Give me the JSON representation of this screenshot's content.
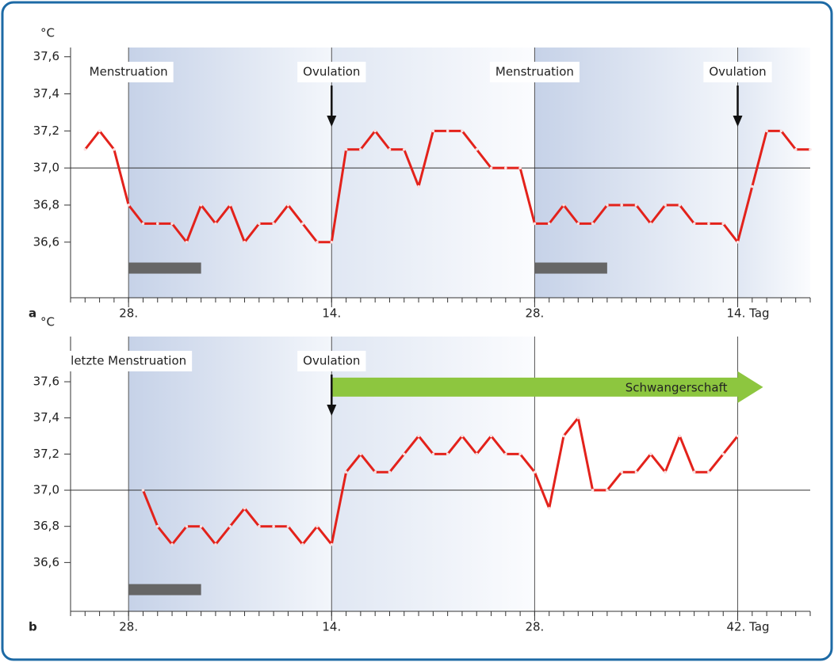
{
  "chart_data": [
    {
      "type": "line",
      "panel": "a",
      "ylabel": "°C",
      "x": [
        1,
        2,
        3,
        4,
        5,
        6,
        7,
        8,
        9,
        10,
        11,
        12,
        13,
        14,
        15,
        16,
        17,
        18,
        19,
        20,
        21,
        22,
        23,
        24,
        25,
        26,
        27,
        28,
        29,
        30,
        31,
        32,
        33,
        34,
        35,
        36,
        37,
        38,
        39,
        40,
        41,
        42,
        43,
        44,
        45,
        46,
        47,
        48,
        49,
        50,
        51
      ],
      "values": [
        37.1,
        37.2,
        37.1,
        36.8,
        36.7,
        36.7,
        36.7,
        36.6,
        36.8,
        36.7,
        36.8,
        36.6,
        36.7,
        36.7,
        36.8,
        36.7,
        36.6,
        36.6,
        37.1,
        37.1,
        37.2,
        37.1,
        37.1,
        36.9,
        37.2,
        37.2,
        37.2,
        37.1,
        37.0,
        37.0,
        37.0,
        36.7,
        36.7,
        36.8,
        36.7,
        36.7,
        36.8,
        36.8,
        36.8,
        36.7,
        36.8,
        36.8,
        36.7,
        36.7,
        36.7,
        36.6,
        36.9,
        37.2,
        37.2,
        37.1,
        37.1
      ],
      "color": "#e3221b",
      "xlim": [
        0,
        51
      ],
      "xticks": [
        {
          "value": 4,
          "label": "28."
        },
        {
          "value": 18,
          "label": "14."
        },
        {
          "value": 32,
          "label": "28."
        },
        {
          "value": 46,
          "label": "14. Tag"
        }
      ],
      "minor_ticks_x": 1,
      "ylim": [
        36.3,
        37.65
      ],
      "yticks": [
        {
          "value": 36.6,
          "label": "36,6"
        },
        {
          "value": 36.8,
          "label": "36,8"
        },
        {
          "value": 37,
          "label": "37,0"
        },
        {
          "value": 37.2,
          "label": "37,2"
        },
        {
          "value": 37.4,
          "label": "37,4"
        },
        {
          "value": 37.6,
          "label": "37,6"
        }
      ],
      "hline": 37,
      "grid_x": true,
      "labels": [
        {
          "label": "Menstruation",
          "x": 4
        },
        {
          "label": "Menstruation",
          "x": 32
        }
      ],
      "arrows": [
        {
          "label": "Ovulation",
          "x": 18
        },
        {
          "label": "Ovulation",
          "x": 46
        }
      ],
      "bars": [
        {
          "x": [
            4,
            9
          ],
          "y": 36.46
        },
        {
          "x": [
            32,
            37
          ],
          "y": 36.46
        }
      ]
    },
    {
      "type": "line",
      "panel": "b",
      "ylabel": "°C",
      "x": [
        5,
        6,
        7,
        8,
        9,
        10,
        11,
        12,
        13,
        14,
        15,
        16,
        17,
        18,
        19,
        20,
        21,
        22,
        23,
        24,
        25,
        26,
        27,
        28,
        29,
        30,
        31,
        32,
        33,
        34,
        35,
        36,
        37,
        38,
        39,
        40,
        41,
        42,
        43,
        44,
        45,
        46
      ],
      "values": [
        37.0,
        36.8,
        36.7,
        36.8,
        36.8,
        36.7,
        36.8,
        36.9,
        36.8,
        36.8,
        36.8,
        36.7,
        36.8,
        36.7,
        37.1,
        37.2,
        37.1,
        37.1,
        37.2,
        37.3,
        37.2,
        37.2,
        37.3,
        37.2,
        37.3,
        37.2,
        37.2,
        37.1,
        36.9,
        37.3,
        37.4,
        37.0,
        37.0,
        37.1,
        37.1,
        37.2,
        37.1,
        37.3,
        37.1,
        37.1,
        37.2,
        37.3
      ],
      "color": "#e3221b",
      "xlim": [
        0,
        51
      ],
      "xticks": [
        {
          "value": 4,
          "label": "28."
        },
        {
          "value": 18,
          "label": "14."
        },
        {
          "value": 32,
          "label": "28."
        },
        {
          "value": 46,
          "label": "42. Tag"
        }
      ],
      "minor_ticks_x": 1,
      "ylim": [
        36.33,
        37.85
      ],
      "yticks": [
        {
          "value": 36.6,
          "label": "36,6"
        },
        {
          "value": 36.8,
          "label": "36,8"
        },
        {
          "value": 37,
          "label": "37,0"
        },
        {
          "value": 37.2,
          "label": "37,2"
        },
        {
          "value": 37.4,
          "label": "37,4"
        },
        {
          "value": 37.6,
          "label": "37,6"
        }
      ],
      "hline": 37,
      "grid_x": true,
      "labels": [
        {
          "label": "letzte Menstruation",
          "x": 4
        }
      ],
      "arrows": [
        {
          "label": "Ovulation",
          "x": 18
        }
      ],
      "bars": [
        {
          "x": [
            4,
            9
          ],
          "y": 36.45
        }
      ],
      "band_arrow": {
        "label": "Schwangerschaft",
        "x": [
          18,
          47.75
        ],
        "y": 37.57,
        "color": "#8dc63f"
      }
    }
  ]
}
